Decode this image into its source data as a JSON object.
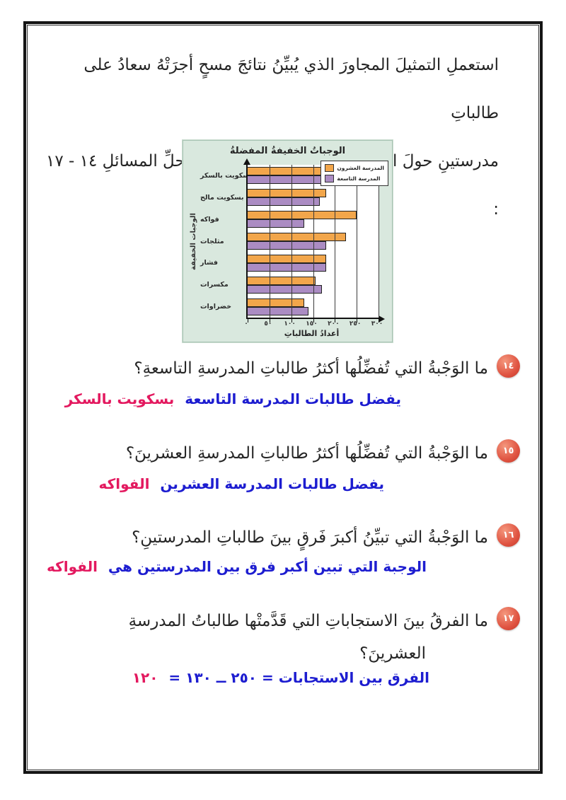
{
  "page": {
    "intro_line1": "استعملِ التمثيلَ المجاورَ الذي يُبيِّنُ نتائجَ مسحٍ أجرَتْهُ سعادُ على طالباتِ",
    "intro_line2": "مدرستينِ حولَ الوجباتِ الخفيفةِ التي يفضِّلْنَها؛ لحلِّ المسائلِ ١٤ - ١٧ :"
  },
  "chart_data": {
    "type": "bar",
    "orientation": "horizontal",
    "title": "الوجباتُ الخفيفةُ المفضلةُ",
    "xlabel": "أعدادُ الطالباتِ",
    "ylabel": "الوجبات الخفيفة",
    "categories": [
      "بسكويت بالسكر",
      "بسكويت مالح",
      "فواكه",
      "مثلجات",
      "فشار",
      "مكسرات",
      "خضراوات"
    ],
    "series": [
      {
        "name": "المدرسة العشرون",
        "color": "#f2a64b",
        "values": [
          170,
          180,
          250,
          225,
          180,
          155,
          130
        ]
      },
      {
        "name": "المدرسة التاسعة",
        "color": "#ab8cc3",
        "values": [
          195,
          165,
          130,
          180,
          180,
          170,
          140
        ]
      }
    ],
    "xlim": [
      0,
      300
    ],
    "xticks": [
      0,
      50,
      100,
      150,
      200,
      250,
      300
    ],
    "xtick_labels": [
      "٠",
      "٥٠",
      "١٠٠",
      "١٥٠",
      "٢٠٠",
      "٢٥٠",
      "٣٠٠"
    ],
    "grid": true,
    "legend_position": "top-right"
  },
  "questions": [
    {
      "number": "١٤",
      "text": "ما الوَجْبةُ التي تُفضِّلُها أكثرُ طالباتِ المدرسةِ التاسعةِ؟",
      "answer_main": "يفضل طالبات المدرسة التاسعة",
      "answer_highlight": "بسكويت بالسكر"
    },
    {
      "number": "١٥",
      "text": "ما الوَجْبةُ التي تُفضِّلُها أكثرُ طالباتِ المدرسةِ العشرينَ؟",
      "answer_main": "يفضل طالبات المدرسة العشرين",
      "answer_highlight": "الفواكه"
    },
    {
      "number": "١٦",
      "text": "ما الوَجْبةُ التي تبيِّنُ أكبرَ فَرقٍ بينَ طالباتِ المدرستينِ؟",
      "answer_main": "الوجبة التي تبين أكبر فرق بين المدرستين هي",
      "answer_highlight": "الفواكه"
    },
    {
      "number": "١٧",
      "text": "ما الفرقُ بينَ الاستجاباتِ التي قَدَّمتْها طالباتُ المدرسةِ",
      "text2": "العشرينَ؟",
      "answer_main": "الفرق بين الاستجابات = ٢٥٠ ــ ١٣٠ =",
      "answer_highlight": "١٢٠"
    }
  ],
  "colors": {
    "answer_main": "#1d1dd0",
    "answer_highlight": "#e3195f",
    "badge": "#df5240",
    "panel_bg": "#d9e8de"
  }
}
